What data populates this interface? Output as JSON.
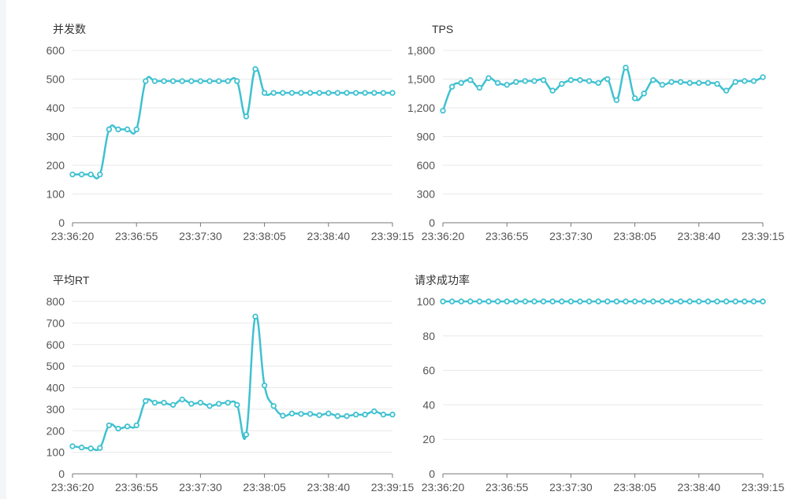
{
  "colors": {
    "series": "#3fc1d0",
    "grid": "#e8e8e8",
    "axis": "#777777",
    "text": "#555555"
  },
  "chart_data": [
    {
      "type": "line",
      "title": "并发数",
      "ylim": [
        0,
        600
      ],
      "yticks": [
        "0",
        "100",
        "200",
        "300",
        "400",
        "500",
        "600"
      ],
      "xticks": [
        "23:36:20",
        "23:36:55",
        "23:37:30",
        "23:38:05",
        "23:38:40",
        "23:39:15"
      ],
      "xrange_seconds": [
        0,
        175
      ],
      "grid": true,
      "x": [
        0,
        5,
        10,
        15,
        20,
        25,
        30,
        35,
        40,
        45,
        50,
        55,
        60,
        65,
        70,
        75,
        80,
        85,
        90,
        95,
        100,
        105,
        110,
        115,
        120,
        125,
        130,
        135,
        140,
        145,
        150,
        155,
        160,
        165,
        170,
        175
      ],
      "values": [
        168,
        168,
        168,
        168,
        325,
        325,
        325,
        325,
        493,
        493,
        493,
        493,
        493,
        493,
        493,
        493,
        493,
        493,
        493,
        370,
        535,
        452,
        452,
        452,
        452,
        452,
        452,
        452,
        452,
        452,
        452,
        452,
        452,
        452,
        452,
        452
      ]
    },
    {
      "type": "line",
      "title": "TPS",
      "ylim": [
        0,
        1800
      ],
      "yticks": [
        "0",
        "300",
        "600",
        "900",
        "1,200",
        "1,500",
        "1,800"
      ],
      "xticks": [
        "23:36:20",
        "23:36:55",
        "23:37:30",
        "23:38:05",
        "23:38:40",
        "23:39:15"
      ],
      "xrange_seconds": [
        0,
        175
      ],
      "grid": true,
      "x": [
        0,
        5,
        10,
        15,
        20,
        25,
        30,
        35,
        40,
        45,
        50,
        55,
        60,
        65,
        70,
        75,
        80,
        85,
        90,
        95,
        100,
        105,
        110,
        115,
        120,
        125,
        130,
        135,
        140,
        145,
        150,
        155,
        160,
        165,
        170,
        175
      ],
      "values": [
        1170,
        1420,
        1460,
        1490,
        1410,
        1510,
        1460,
        1440,
        1470,
        1480,
        1480,
        1490,
        1380,
        1450,
        1490,
        1490,
        1480,
        1460,
        1500,
        1280,
        1620,
        1300,
        1350,
        1490,
        1440,
        1470,
        1470,
        1460,
        1460,
        1460,
        1450,
        1380,
        1470,
        1480,
        1480,
        1520
      ]
    },
    {
      "type": "line",
      "title": "平均RT",
      "ylim": [
        0,
        800
      ],
      "yticks": [
        "0",
        "100",
        "200",
        "300",
        "400",
        "500",
        "600",
        "700",
        "800"
      ],
      "xticks": [
        "23:36:20",
        "23:36:55",
        "23:37:30",
        "23:38:05",
        "23:38:40",
        "23:39:15"
      ],
      "xrange_seconds": [
        0,
        175
      ],
      "grid": true,
      "x": [
        0,
        5,
        10,
        15,
        20,
        25,
        30,
        35,
        40,
        45,
        50,
        55,
        60,
        65,
        70,
        75,
        80,
        85,
        90,
        95,
        100,
        105,
        110,
        115,
        120,
        125,
        130,
        135,
        140,
        145,
        150,
        155,
        160,
        165,
        170,
        175
      ],
      "values": [
        128,
        122,
        118,
        120,
        225,
        210,
        220,
        225,
        338,
        330,
        330,
        320,
        345,
        325,
        330,
        315,
        325,
        330,
        320,
        182,
        730,
        410,
        315,
        270,
        280,
        278,
        278,
        272,
        280,
        268,
        268,
        275,
        275,
        290,
        275,
        275
      ]
    },
    {
      "type": "line",
      "title": "请求成功率",
      "ylim": [
        0,
        100
      ],
      "yticks": [
        "0",
        "20",
        "40",
        "60",
        "80",
        "100"
      ],
      "xticks": [
        "23:36:20",
        "23:36:55",
        "23:37:30",
        "23:38:05",
        "23:38:40",
        "23:39:15"
      ],
      "xrange_seconds": [
        0,
        175
      ],
      "grid": true,
      "x": [
        0,
        5,
        10,
        15,
        20,
        25,
        30,
        35,
        40,
        45,
        50,
        55,
        60,
        65,
        70,
        75,
        80,
        85,
        90,
        95,
        100,
        105,
        110,
        115,
        120,
        125,
        130,
        135,
        140,
        145,
        150,
        155,
        160,
        165,
        170,
        175
      ],
      "values": [
        100,
        100,
        100,
        100,
        100,
        100,
        100,
        100,
        100,
        100,
        100,
        100,
        100,
        100,
        100,
        100,
        100,
        100,
        100,
        100,
        100,
        100,
        100,
        100,
        100,
        100,
        100,
        100,
        100,
        100,
        100,
        100,
        100,
        100,
        100,
        100
      ]
    }
  ]
}
